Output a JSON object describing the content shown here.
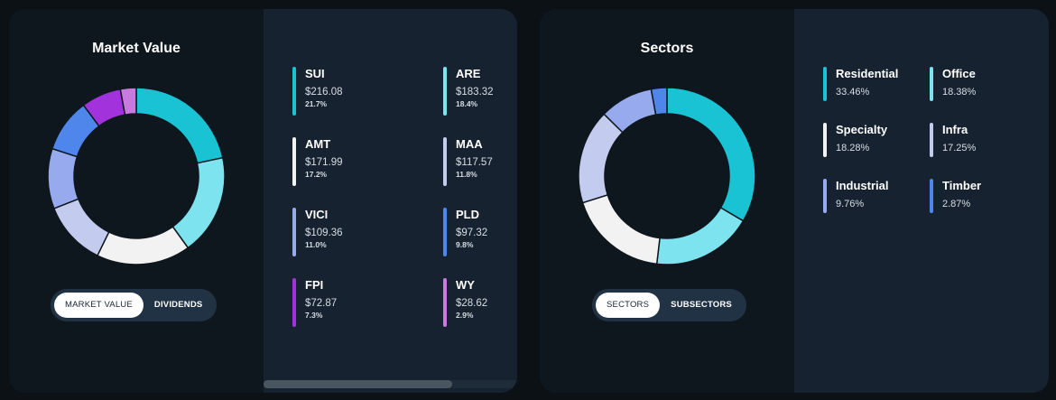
{
  "market_card": {
    "title": "Market Value",
    "toggle": {
      "active": "MARKET VALUE",
      "inactive": "DIVIDENDS"
    },
    "segments": [
      {
        "color": "#19c3d4",
        "pct": 21.7
      },
      {
        "color": "#7de3ef",
        "pct": 18.4
      },
      {
        "color": "#f2f2f2",
        "pct": 17.2
      },
      {
        "color": "#c3ccef",
        "pct": 11.8
      },
      {
        "color": "#97aaee",
        "pct": 11.0
      },
      {
        "color": "#4e86ec",
        "pct": 9.8
      },
      {
        "color": "#a132dc",
        "pct": 7.3
      },
      {
        "color": "#c87adf",
        "pct": 2.9
      }
    ],
    "holdings": [
      {
        "ticker": "SUI",
        "value": "$216.08",
        "pct": "21.7%",
        "color": "#19c3d4"
      },
      {
        "ticker": "ARE",
        "value": "$183.32",
        "pct": "18.4%",
        "color": "#7de3ef"
      },
      {
        "ticker": "AMT",
        "value": "$171.99",
        "pct": "17.2%",
        "color": "#f2f2f2"
      },
      {
        "ticker": "MAA",
        "value": "$117.57",
        "pct": "11.8%",
        "color": "#c3ccef"
      },
      {
        "ticker": "VICI",
        "value": "$109.36",
        "pct": "11.0%",
        "color": "#97aaee"
      },
      {
        "ticker": "PLD",
        "value": "$97.32",
        "pct": "9.8%",
        "color": "#4e86ec"
      },
      {
        "ticker": "FPI",
        "value": "$72.87",
        "pct": "7.3%",
        "color": "#a132dc"
      },
      {
        "ticker": "WY",
        "value": "$28.62",
        "pct": "2.9%",
        "color": "#c87adf"
      }
    ]
  },
  "sectors_card": {
    "title": "Sectors",
    "toggle": {
      "active": "SECTORS",
      "inactive": "SUBSECTORS"
    },
    "segments": [
      {
        "color": "#19c3d4",
        "pct": 33.46
      },
      {
        "color": "#7de3ef",
        "pct": 18.38
      },
      {
        "color": "#f2f2f2",
        "pct": 18.28
      },
      {
        "color": "#c3ccef",
        "pct": 17.25
      },
      {
        "color": "#97aaee",
        "pct": 9.76
      },
      {
        "color": "#4e86ec",
        "pct": 2.87
      }
    ],
    "sectors": [
      {
        "name": "Residential",
        "pct": "33.46%",
        "color": "#19c3d4"
      },
      {
        "name": "Office",
        "pct": "18.38%",
        "color": "#7de3ef"
      },
      {
        "name": "Specialty",
        "pct": "18.28%",
        "color": "#f2f2f2"
      },
      {
        "name": "Infra",
        "pct": "17.25%",
        "color": "#c3ccef"
      },
      {
        "name": "Industrial",
        "pct": "9.76%",
        "color": "#97aaee"
      },
      {
        "name": "Timber",
        "pct": "2.87%",
        "color": "#4e86ec"
      }
    ]
  }
}
